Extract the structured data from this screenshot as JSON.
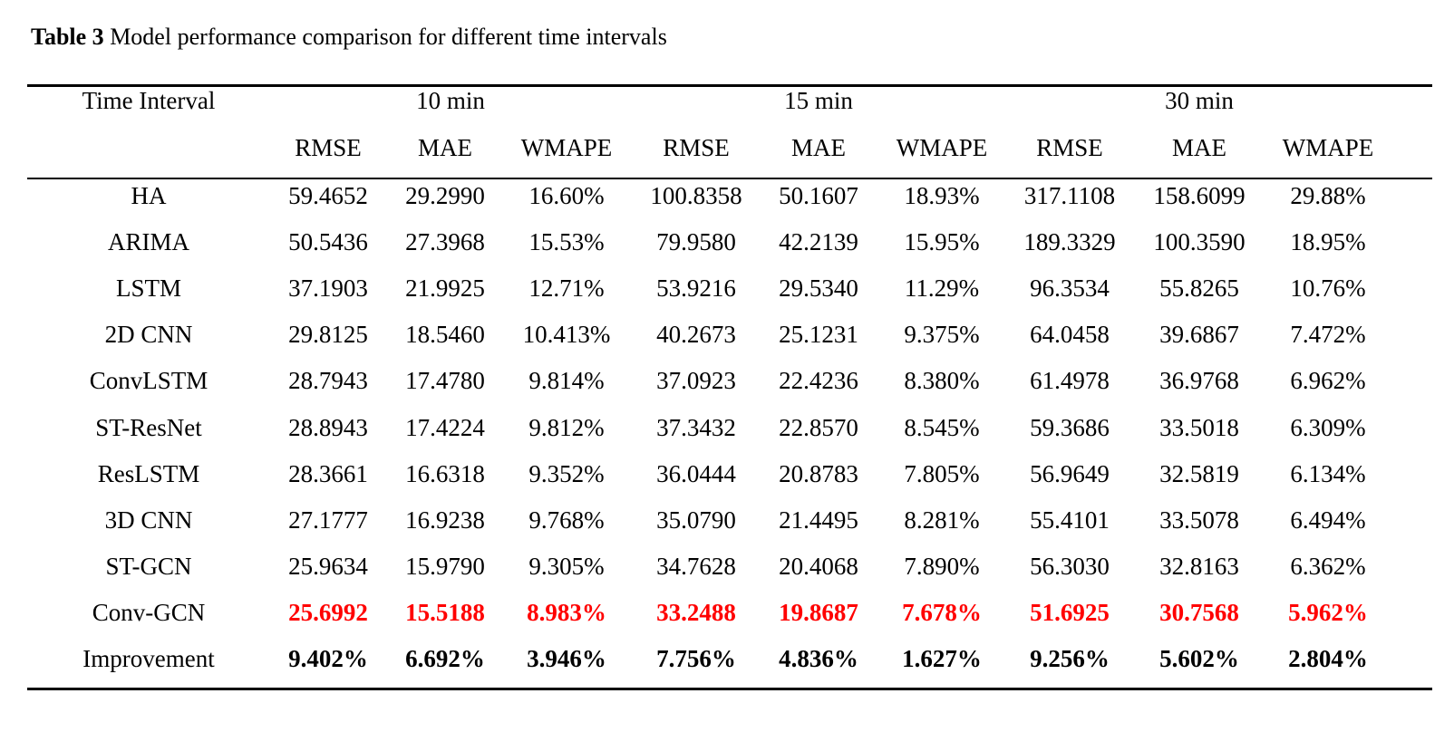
{
  "caption": {
    "label": "Table 3",
    "text": " Model performance comparison for different time intervals"
  },
  "colors": {
    "best": "#ff0000",
    "text": "#000000"
  },
  "header": {
    "row_label": "Time Interval",
    "groups": [
      "10 min",
      "15 min",
      "30 min"
    ],
    "metrics": [
      "RMSE",
      "MAE",
      "WMAPE",
      "RMSE",
      "MAE",
      "WMAPE",
      "RMSE",
      "MAE",
      "WMAPE"
    ]
  },
  "rows": [
    {
      "model": "HA",
      "values": [
        "59.4652",
        "29.2990",
        "16.60%",
        "100.8358",
        "50.1607",
        "18.93%",
        "317.1108",
        "158.6099",
        "29.88%"
      ],
      "style": "normal"
    },
    {
      "model": "ARIMA",
      "values": [
        "50.5436",
        "27.3968",
        "15.53%",
        "79.9580",
        "42.2139",
        "15.95%",
        "189.3329",
        "100.3590",
        "18.95%"
      ],
      "style": "normal"
    },
    {
      "model": "LSTM",
      "values": [
        "37.1903",
        "21.9925",
        "12.71%",
        "53.9216",
        "29.5340",
        "11.29%",
        "96.3534",
        "55.8265",
        "10.76%"
      ],
      "style": "normal"
    },
    {
      "model": "2D CNN",
      "values": [
        "29.8125",
        "18.5460",
        "10.413%",
        "40.2673",
        "25.1231",
        "9.375%",
        "64.0458",
        "39.6867",
        "7.472%"
      ],
      "style": "normal"
    },
    {
      "model": "ConvLSTM",
      "values": [
        "28.7943",
        "17.4780",
        "9.814%",
        "37.0923",
        "22.4236",
        "8.380%",
        "61.4978",
        "36.9768",
        "6.962%"
      ],
      "style": "normal"
    },
    {
      "model": "ST-ResNet",
      "values": [
        "28.8943",
        "17.4224",
        "9.812%",
        "37.3432",
        "22.8570",
        "8.545%",
        "59.3686",
        "33.5018",
        "6.309%"
      ],
      "style": "normal"
    },
    {
      "model": "ResLSTM",
      "values": [
        "28.3661",
        "16.6318",
        "9.352%",
        "36.0444",
        "20.8783",
        "7.805%",
        "56.9649",
        "32.5819",
        "6.134%"
      ],
      "style": "normal"
    },
    {
      "model": "3D CNN",
      "values": [
        "27.1777",
        "16.9238",
        "9.768%",
        "35.0790",
        "21.4495",
        "8.281%",
        "55.4101",
        "33.5078",
        "6.494%"
      ],
      "style": "normal"
    },
    {
      "model": "ST-GCN",
      "values": [
        "25.9634",
        "15.9790",
        "9.305%",
        "34.7628",
        "20.4068",
        "7.890%",
        "56.3030",
        "32.8163",
        "6.362%"
      ],
      "style": "normal"
    },
    {
      "model": "Conv-GCN",
      "values": [
        "25.6992",
        "15.5188",
        "8.983%",
        "33.2488",
        "19.8687",
        "7.678%",
        "51.6925",
        "30.7568",
        "5.962%"
      ],
      "style": "best"
    },
    {
      "model": "Improvement",
      "values": [
        "9.402%",
        "6.692%",
        "3.946%",
        "7.756%",
        "4.836%",
        "1.627%",
        "9.256%",
        "5.602%",
        "2.804%"
      ],
      "style": "bold"
    }
  ]
}
